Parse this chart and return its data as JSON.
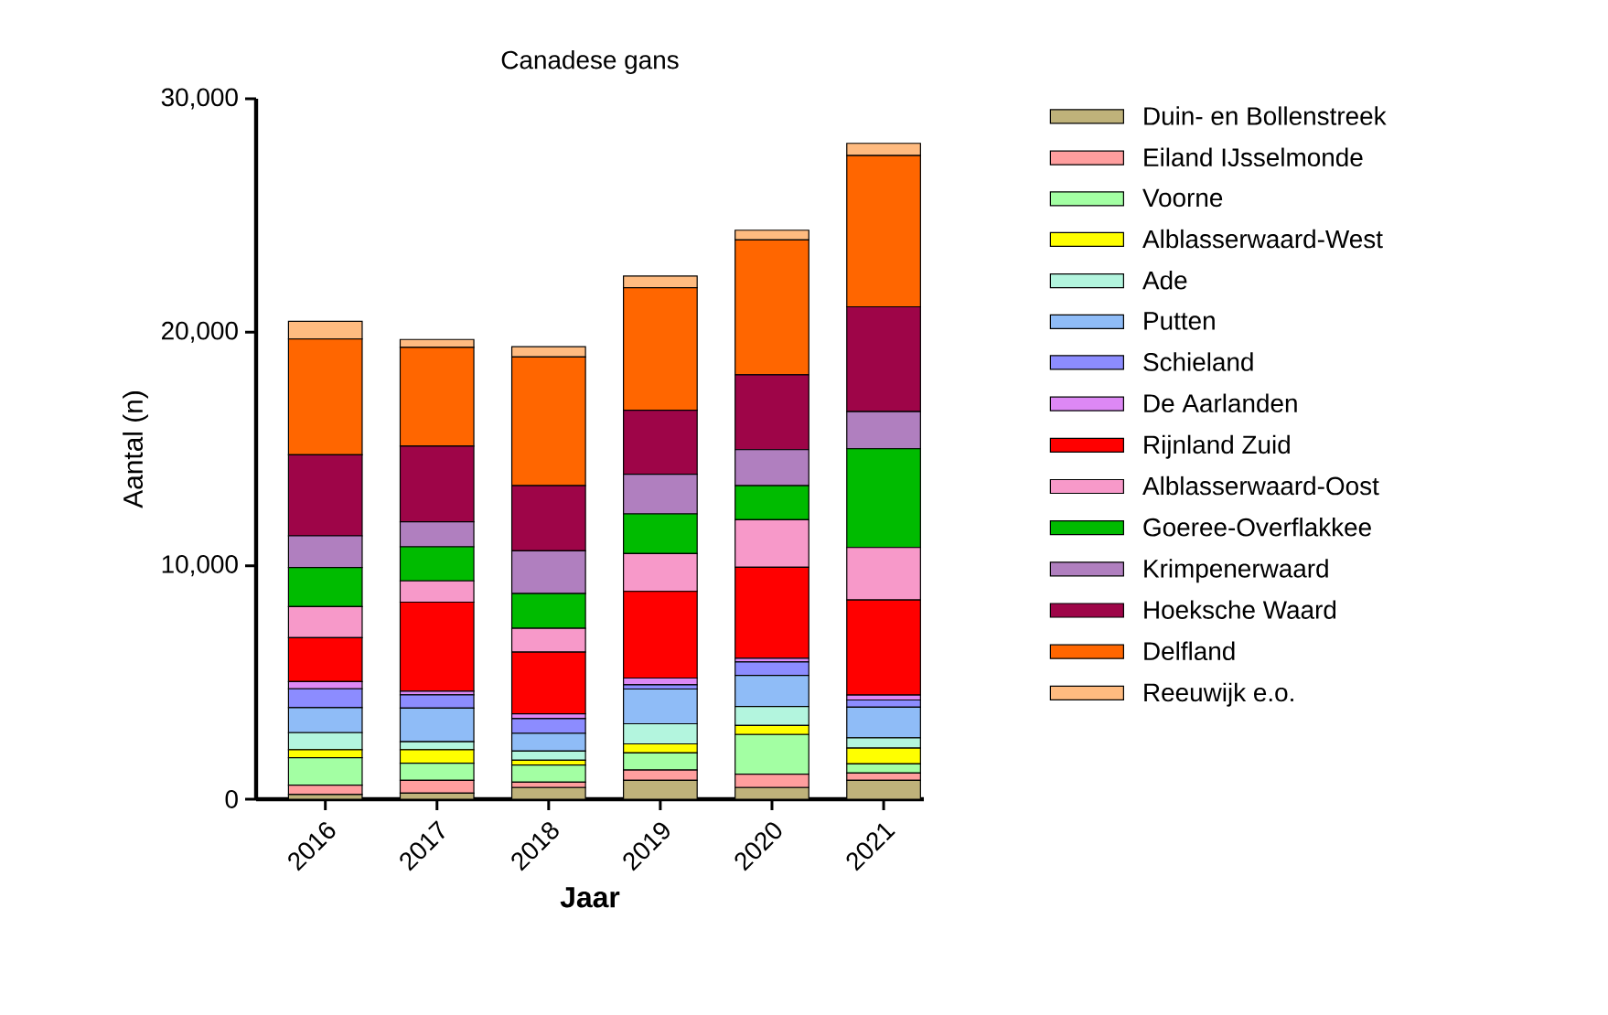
{
  "chart_data": {
    "type": "bar",
    "stacked": true,
    "title": "Canadese gans",
    "xlabel": "Jaar",
    "ylabel": "Aantal (n)",
    "categories": [
      "2016",
      "2017",
      "2018",
      "2019",
      "2020",
      "2021"
    ],
    "ylim": [
      0,
      30000
    ],
    "yticks": [
      {
        "value": 0,
        "label": "0"
      },
      {
        "value": 10000,
        "label": "10,000"
      },
      {
        "value": 20000,
        "label": "20,000"
      },
      {
        "value": 30000,
        "label": "30,000"
      }
    ],
    "legend": "right",
    "grid": false,
    "series": [
      {
        "name": "Duin- en Bollenstreek",
        "color": "#bfb27a",
        "values": [
          200,
          260,
          500,
          810,
          500,
          810
        ]
      },
      {
        "name": "Eiland IJsselmonde",
        "color": "#ff9e9e",
        "values": [
          400,
          550,
          230,
          440,
          570,
          310
        ]
      },
      {
        "name": "Voorne",
        "color": "#a3ffa3",
        "values": [
          1180,
          730,
          730,
          730,
          1700,
          390
        ]
      },
      {
        "name": "Alblasserwaard-West",
        "color": "#ffff00",
        "values": [
          340,
          580,
          210,
          390,
          390,
          680
        ]
      },
      {
        "name": "Ade",
        "color": "#b3f5de",
        "values": [
          730,
          340,
          390,
          860,
          810,
          440
        ]
      },
      {
        "name": "Putten",
        "color": "#8fbcf7",
        "values": [
          1070,
          1440,
          760,
          1490,
          1330,
          1310
        ]
      },
      {
        "name": "Schieland",
        "color": "#8c8cff",
        "values": [
          810,
          570,
          630,
          180,
          580,
          310
        ]
      },
      {
        "name": "De Aarlanden",
        "color": "#dd88f5",
        "values": [
          310,
          160,
          210,
          290,
          160,
          210
        ]
      },
      {
        "name": "Rijnland Zuid",
        "color": "#ff0000",
        "values": [
          1880,
          3810,
          2640,
          3710,
          3890,
          4070
        ]
      },
      {
        "name": "Alblasserwaard-Oost",
        "color": "#f799c9",
        "values": [
          1330,
          910,
          1020,
          1620,
          2040,
          2250
        ]
      },
      {
        "name": "Goeree-Overflakkee",
        "color": "#00bb00",
        "values": [
          1670,
          1460,
          1490,
          1700,
          1460,
          4230
        ]
      },
      {
        "name": "Krimpenerwaard",
        "color": "#b07fbf",
        "values": [
          1360,
          1070,
          1830,
          1700,
          1540,
          1590
        ]
      },
      {
        "name": "Hoeksche Waard",
        "color": "#9e0548",
        "values": [
          3470,
          3240,
          2790,
          2740,
          3210,
          4490
        ]
      },
      {
        "name": "Delfland",
        "color": "#ff6600",
        "values": [
          4960,
          4230,
          5510,
          5250,
          5770,
          6480
        ]
      },
      {
        "name": "Reeuwijk e.o.",
        "color": "#ffbb80",
        "values": [
          760,
          340,
          440,
          500,
          420,
          520
        ]
      }
    ]
  }
}
